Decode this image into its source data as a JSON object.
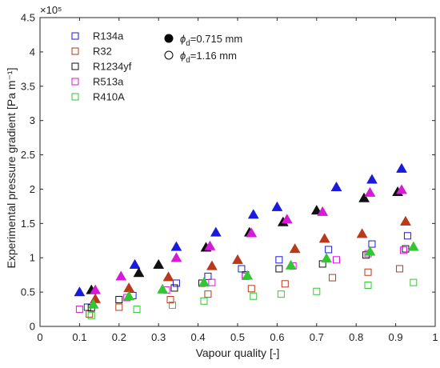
{
  "chart_data": {
    "type": "scatter",
    "xlabel": "Vapour quality [-]",
    "ylabel": "Experimental pressure gradient [Pa  m⁻¹]",
    "y_multiplier": "×10⁵",
    "x_ticks": [
      "0",
      "0.1",
      "0.2",
      "0.3",
      "0.4",
      "0.5",
      "0.6",
      "0.7",
      "0.8",
      "0.9",
      "1"
    ],
    "y_ticks": [
      "0",
      "0.5",
      "1",
      "1.5",
      "2",
      "2.5",
      "3",
      "3.5",
      "4",
      "4.5"
    ],
    "xlim": [
      0,
      1
    ],
    "ylim": [
      0,
      4.5
    ],
    "grid": false,
    "legend_placement": "top-left",
    "marker_legend": [
      {
        "marker": "filled",
        "label_prefix": "ϕ",
        "label_sub": "d",
        "label_suffix": "=0.715 mm"
      },
      {
        "marker": "open",
        "label_prefix": "ϕ",
        "label_sub": "d",
        "label_suffix": "=1.16 mm"
      }
    ],
    "series": [
      {
        "name": "R134a",
        "color": "#1a1adf",
        "filled": [
          [
            0.1,
            0.5
          ],
          [
            0.24,
            0.9
          ],
          [
            0.345,
            1.16
          ],
          [
            0.445,
            1.37
          ],
          [
            0.54,
            1.63
          ],
          [
            0.6,
            1.74
          ],
          [
            0.75,
            2.03
          ],
          [
            0.84,
            2.14
          ],
          [
            0.915,
            2.3
          ]
        ],
        "open": [
          [
            0.12,
            0.28
          ],
          [
            0.235,
            0.45
          ],
          [
            0.345,
            0.63
          ],
          [
            0.425,
            0.73
          ],
          [
            0.51,
            0.84
          ],
          [
            0.605,
            0.97
          ],
          [
            0.73,
            1.12
          ],
          [
            0.84,
            1.2
          ],
          [
            0.93,
            1.32
          ]
        ]
      },
      {
        "name": "R32",
        "color": "#b83a1a",
        "filled": [
          [
            0.14,
            0.4
          ],
          [
            0.225,
            0.56
          ],
          [
            0.325,
            0.72
          ],
          [
            0.435,
            0.88
          ],
          [
            0.5,
            0.97
          ],
          [
            0.645,
            1.13
          ],
          [
            0.72,
            1.28
          ],
          [
            0.815,
            1.35
          ],
          [
            0.925,
            1.53
          ]
        ],
        "open": [
          [
            0.125,
            0.18
          ],
          [
            0.2,
            0.28
          ],
          [
            0.33,
            0.39
          ],
          [
            0.425,
            0.47
          ],
          [
            0.535,
            0.55
          ],
          [
            0.62,
            0.62
          ],
          [
            0.74,
            0.71
          ],
          [
            0.83,
            0.79
          ],
          [
            0.91,
            0.84
          ]
        ]
      },
      {
        "name": "R1234yf",
        "color": "#111111",
        "filled": [
          [
            0.13,
            0.53
          ],
          [
            0.25,
            0.78
          ],
          [
            0.3,
            0.9
          ],
          [
            0.42,
            1.15
          ],
          [
            0.53,
            1.37
          ],
          [
            0.615,
            1.52
          ],
          [
            0.7,
            1.69
          ],
          [
            0.82,
            1.87
          ],
          [
            0.905,
            1.96
          ]
        ],
        "open": [
          [
            0.13,
            0.27
          ],
          [
            0.2,
            0.39
          ],
          [
            0.34,
            0.56
          ],
          [
            0.41,
            0.63
          ],
          [
            0.52,
            0.75
          ],
          [
            0.605,
            0.84
          ],
          [
            0.715,
            0.91
          ],
          [
            0.825,
            1.04
          ],
          [
            0.925,
            1.13
          ]
        ]
      },
      {
        "name": "R513a",
        "color": "#d61ad6",
        "filled": [
          [
            0.14,
            0.53
          ],
          [
            0.205,
            0.73
          ],
          [
            0.345,
            1.0
          ],
          [
            0.43,
            1.17
          ],
          [
            0.535,
            1.36
          ],
          [
            0.625,
            1.56
          ],
          [
            0.715,
            1.67
          ],
          [
            0.835,
            1.95
          ],
          [
            0.915,
            1.99
          ]
        ],
        "open": [
          [
            0.1,
            0.25
          ],
          [
            0.22,
            0.42
          ],
          [
            0.32,
            0.53
          ],
          [
            0.435,
            0.64
          ],
          [
            0.52,
            0.73
          ],
          [
            0.64,
            0.88
          ],
          [
            0.75,
            0.97
          ],
          [
            0.83,
            1.06
          ],
          [
            0.92,
            1.11
          ]
        ]
      },
      {
        "name": "R410A",
        "color": "#33c633",
        "filled": [
          [
            0.135,
            0.32
          ],
          [
            0.225,
            0.44
          ],
          [
            0.31,
            0.54
          ],
          [
            0.415,
            0.64
          ],
          [
            0.525,
            0.74
          ],
          [
            0.635,
            0.89
          ],
          [
            0.725,
            0.99
          ],
          [
            0.835,
            1.09
          ],
          [
            0.945,
            1.16
          ]
        ],
        "open": [
          [
            0.13,
            0.16
          ],
          [
            0.245,
            0.25
          ],
          [
            0.335,
            0.31
          ],
          [
            0.415,
            0.37
          ],
          [
            0.54,
            0.44
          ],
          [
            0.61,
            0.47
          ],
          [
            0.7,
            0.51
          ],
          [
            0.83,
            0.6
          ],
          [
            0.945,
            0.64
          ]
        ]
      }
    ]
  }
}
